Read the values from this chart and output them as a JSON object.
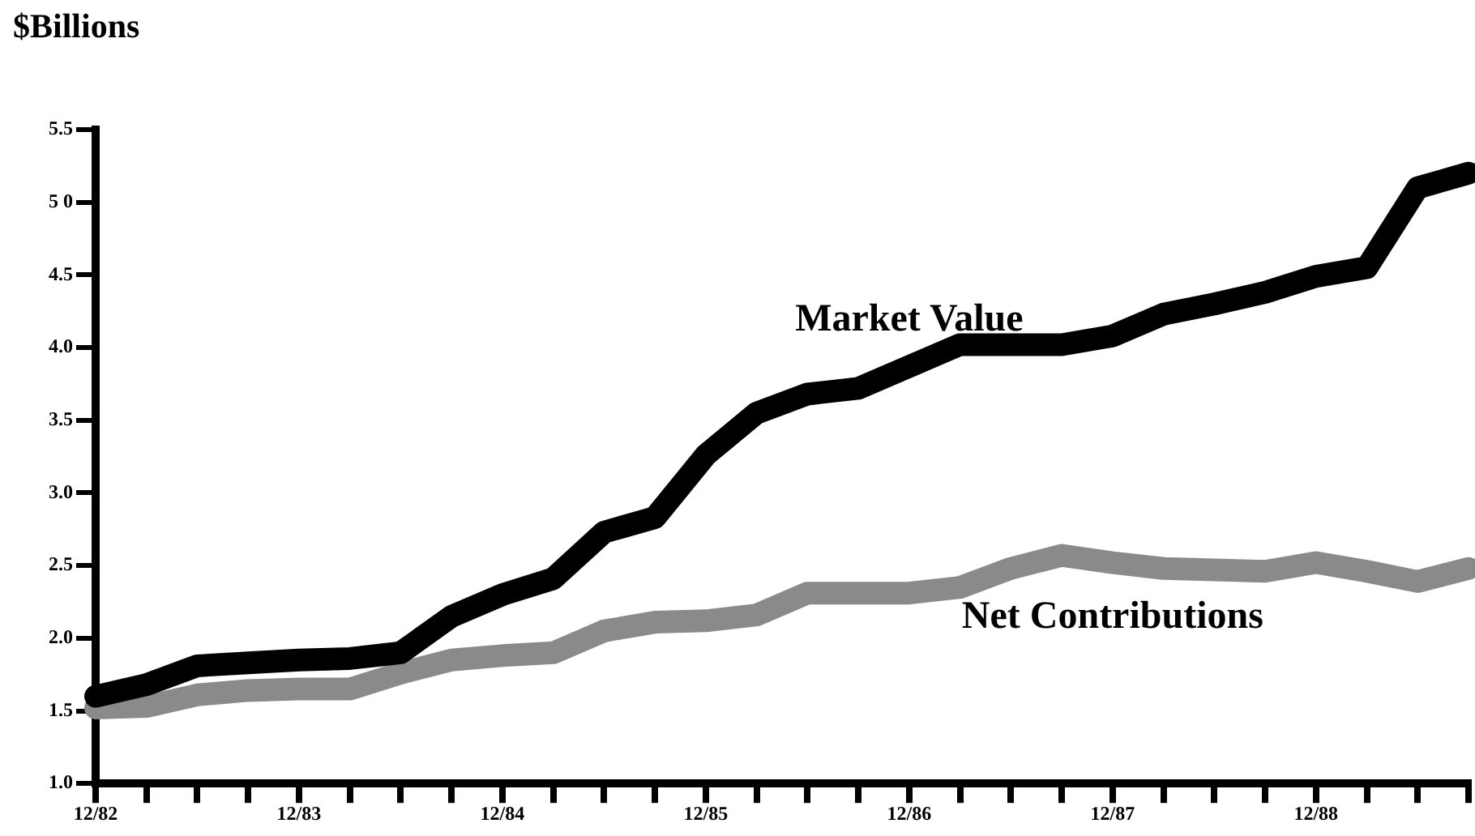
{
  "chart_data": {
    "type": "line",
    "ylabel": "$Billions",
    "categories": [
      "12/82",
      null,
      null,
      null,
      "12/83",
      null,
      null,
      null,
      "12/84",
      null,
      null,
      null,
      "12/85",
      null,
      null,
      null,
      "12/86",
      null,
      null,
      null,
      "12/87",
      null,
      null,
      null,
      "12/88",
      null,
      null,
      null
    ],
    "series": [
      {
        "name": "Market Value",
        "color": "#000000",
        "values": [
          1.6,
          1.68,
          1.81,
          1.83,
          1.85,
          1.86,
          1.9,
          2.15,
          2.3,
          2.41,
          2.73,
          2.83,
          3.26,
          3.55,
          3.68,
          3.72,
          3.87,
          4.02,
          4.02,
          4.02,
          4.08,
          4.23,
          4.3,
          4.38,
          4.49,
          4.55,
          5.1,
          5.2
        ]
      },
      {
        "name": "Net Contributions",
        "color": "#8a8a8a",
        "values": [
          1.52,
          1.53,
          1.61,
          1.64,
          1.65,
          1.65,
          1.76,
          1.85,
          1.88,
          1.9,
          2.05,
          2.11,
          2.12,
          2.16,
          2.31,
          2.31,
          2.31,
          2.35,
          2.48,
          2.57,
          2.52,
          2.48,
          2.47,
          2.46,
          2.52,
          2.46,
          2.39,
          2.48
        ]
      }
    ],
    "ylim": [
      1.0,
      5.5
    ],
    "yticks": [
      {
        "value": 1.0,
        "label": "1.0"
      },
      {
        "value": 1.5,
        "label": "1.5"
      },
      {
        "value": 2.0,
        "label": "2.0"
      },
      {
        "value": 2.5,
        "label": "2.5"
      },
      {
        "value": 3.0,
        "label": "3.0"
      },
      {
        "value": 3.5,
        "label": "3.5"
      },
      {
        "value": 4.0,
        "label": "4.0"
      },
      {
        "value": 4.5,
        "label": "4.5"
      },
      {
        "value": 5.0,
        "label": "5 0"
      },
      {
        "value": 5.5,
        "label": "5.5"
      }
    ],
    "grid": false,
    "legend": false,
    "marker": "none",
    "line_style": "solid"
  }
}
